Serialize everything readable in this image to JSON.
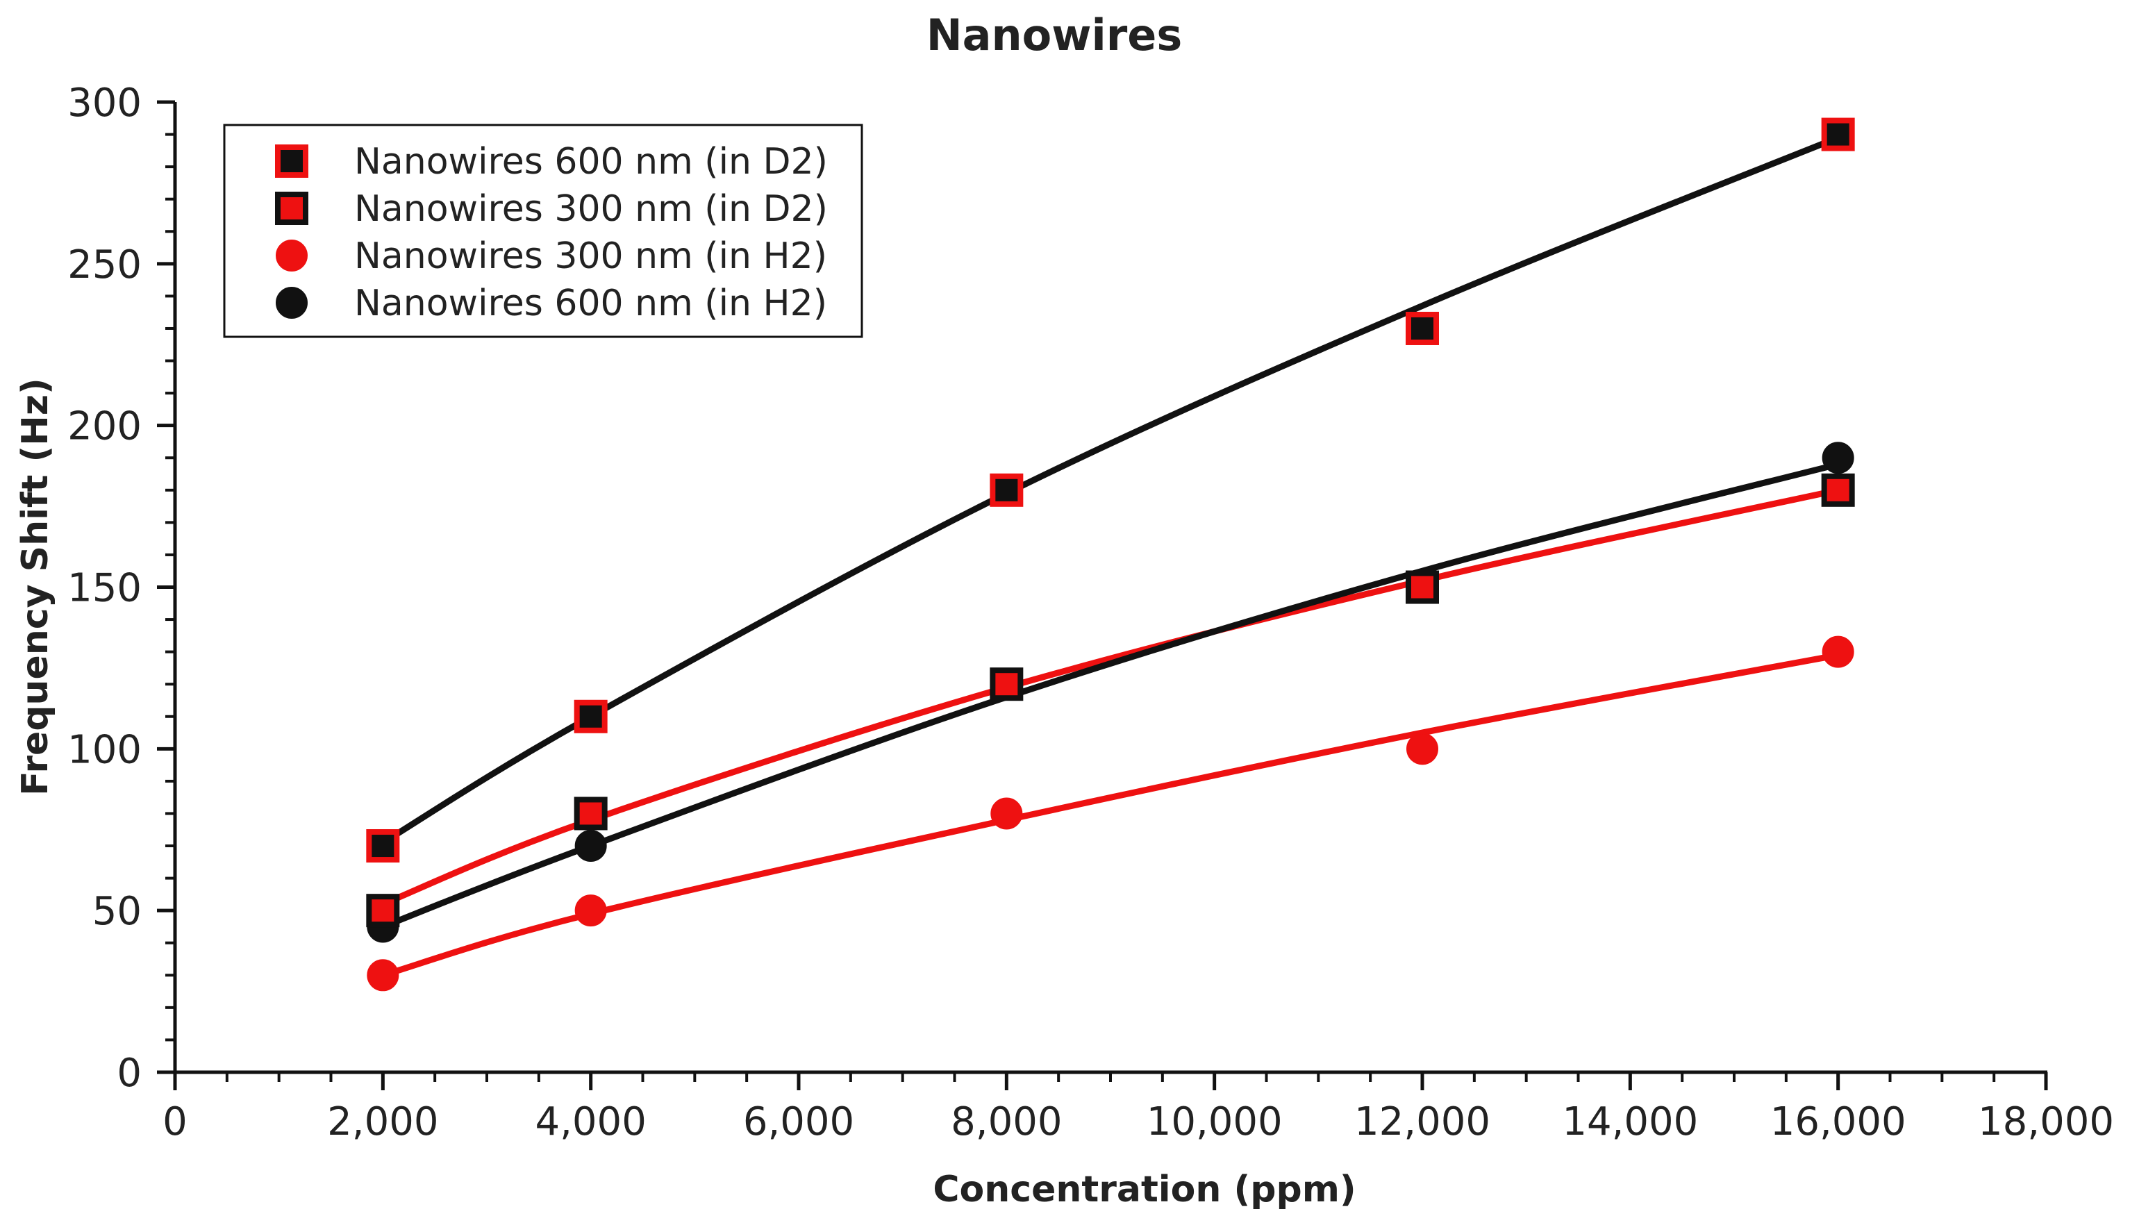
{
  "chart_data": {
    "type": "scatter",
    "title": "Nanowires",
    "xlabel": "Concentration (ppm)",
    "ylabel": "Frequency Shift (Hz)",
    "xlim": [
      0,
      18000
    ],
    "ylim": [
      0,
      300
    ],
    "x_ticks": [
      0,
      2000,
      4000,
      6000,
      8000,
      10000,
      12000,
      14000,
      16000,
      18000
    ],
    "x_tick_labels": [
      "0",
      "2,000",
      "4,000",
      "6,000",
      "8,000",
      "10,000",
      "12,000",
      "14,000",
      "16,000",
      "18,000"
    ],
    "y_ticks": [
      0,
      50,
      100,
      150,
      200,
      250,
      300
    ],
    "y_tick_labels": [
      "0",
      "50",
      "100",
      "150",
      "200",
      "250",
      "300"
    ],
    "grid": false,
    "legend_position": "top-left",
    "x": [
      2000,
      4000,
      8000,
      12000,
      16000
    ],
    "series": [
      {
        "name": "Nanowires 600 nm (in D2)",
        "marker": "square",
        "fill_color": "#111111",
        "edge_color": "#ee1111",
        "line_color": "#111111",
        "values": [
          70,
          110,
          180,
          230,
          290
        ],
        "fit": [
          71,
          110,
          179,
          237,
          289
        ]
      },
      {
        "name": "Nanowires 300 nm (in D2)",
        "marker": "square",
        "fill_color": "#ee1111",
        "edge_color": "#111111",
        "line_color": "#ee1111",
        "values": [
          50,
          80,
          120,
          150,
          180
        ],
        "fit": [
          52,
          78,
          119,
          152,
          180
        ]
      },
      {
        "name": "Nanowires 300 nm (in H2)",
        "marker": "circle",
        "fill_color": "#ee1111",
        "edge_color": "#ee1111",
        "line_color": "#ee1111",
        "values": [
          30,
          50,
          80,
          100,
          130
        ],
        "fit": [
          30,
          49,
          78,
          105,
          129
        ]
      },
      {
        "name": "Nanowires 600 nm (in H2)",
        "marker": "circle",
        "fill_color": "#111111",
        "edge_color": "#111111",
        "line_color": "#111111",
        "values": [
          45,
          70,
          120,
          150,
          190
        ],
        "fit": [
          45,
          70,
          116,
          155,
          188
        ]
      }
    ]
  }
}
